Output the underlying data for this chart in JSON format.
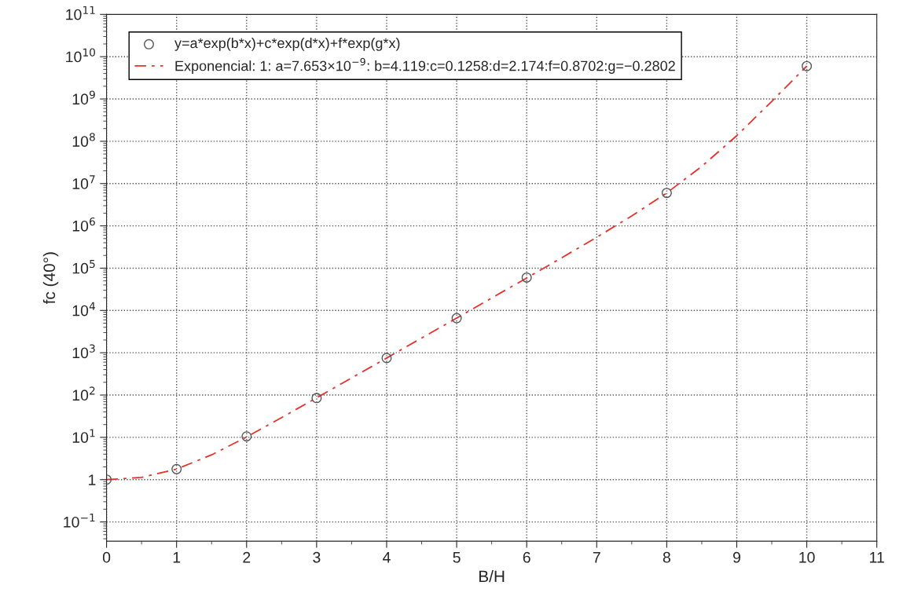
{
  "chart_data": {
    "type": "scatter",
    "xlabel": "B/H",
    "ylabel": "fc (40°)",
    "log": "y",
    "grid": true,
    "legend": "top left",
    "xlim": [
      0,
      11
    ],
    "xticks": [
      0,
      1,
      2,
      3,
      4,
      5,
      6,
      7,
      8,
      9,
      10,
      11
    ],
    "ylim": [
      0.035,
      100000000000.0
    ],
    "yticks": [
      {
        "value": 0.1,
        "label": "10$^{−1}$"
      },
      1,
      {
        "value": 10,
        "label": "10$^{1}$"
      },
      {
        "value": 100,
        "label": "10$^{2}$"
      },
      {
        "value": 1000,
        "label": "10$^{3}$"
      },
      {
        "value": 10000,
        "label": "10$^{4}$"
      },
      {
        "value": 100000,
        "label": "10$^{5}$"
      },
      {
        "value": 1000000,
        "label": "10$^{6}$"
      },
      {
        "value": 10000000,
        "label": "10$^{7}$"
      },
      {
        "value": 100000000,
        "label": "10$^{8}$"
      },
      {
        "value": 1000000000,
        "label": "10$^{9}$"
      },
      {
        "value": 10000000000,
        "label": "10$^{10}$"
      },
      {
        "value": 100000000000,
        "label": "10$^{11}$"
      }
    ],
    "series": [
      {
        "name": "y=a*exp(b*x)+c*exp(d*x)+f*exp(g*x)",
        "marker": "circle",
        "color": "#555555",
        "x": [
          0,
          1,
          2,
          3,
          4,
          5,
          6,
          8,
          10
        ],
        "values": [
          1,
          1.77,
          10.5,
          85,
          750,
          6600,
          60000,
          6000000,
          6000000000
        ]
      },
      {
        "name": "Exponencial: 1: a=7.653×10$^{−9}$: b=4.119:c=0.1258:d=2.174:f=0.8702:g=−0.2802",
        "type": "line",
        "marker": "none",
        "line_style": "dashed",
        "color": "#e8302a",
        "x": [
          0,
          0.5,
          1,
          1.5,
          2,
          2.5,
          3,
          3.5,
          4,
          4.5,
          5,
          5.5,
          6,
          6.5,
          7,
          7.5,
          8,
          8.5,
          9,
          9.5,
          10
        ],
        "values": [
          1,
          1.13,
          1.77,
          3.85,
          10.2,
          29.3,
          86,
          254,
          750,
          2230,
          6600,
          19700,
          58500,
          176000,
          537000,
          1720000,
          6000000,
          25500000,
          136000000,
          880000000,
          6000000000
        ]
      }
    ]
  }
}
